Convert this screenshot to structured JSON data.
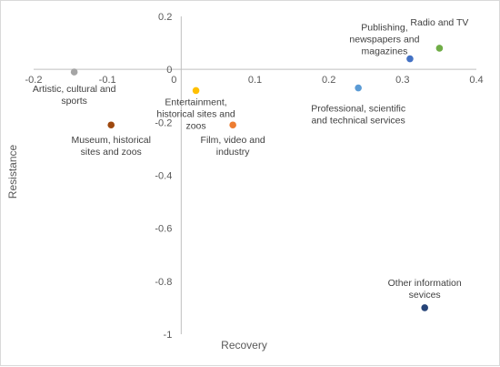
{
  "chart_data": {
    "type": "scatter",
    "title": "",
    "xlabel": "Recovery",
    "ylabel": "Resistance",
    "xlim": [
      -0.2,
      0.4
    ],
    "ylim": [
      -1,
      0.2
    ],
    "x_ticks": [
      "-0.2",
      "-0.1",
      "0",
      "0.1",
      "0.2",
      "0.3",
      "0.4"
    ],
    "y_ticks": [
      "0.2",
      "0",
      "-0.2",
      "-0.4",
      "-0.6",
      "-0.8",
      "-1"
    ],
    "grid": false,
    "legend": "none",
    "points": [
      {
        "label": "Artistic, cultural and sports",
        "lines": [
          "Artistic, cultural and",
          "sports"
        ],
        "x": -0.145,
        "y": -0.01,
        "color": "#a5a5a5"
      },
      {
        "label": "Museum, historical sites and zoos",
        "lines": [
          "Museum, historical",
          "sites and zoos"
        ],
        "x": -0.095,
        "y": -0.21,
        "color": "#9e480e"
      },
      {
        "label": "Entertainment, historical sites and zoos",
        "lines": [
          "Entertainment,",
          "historical sites and",
          "zoos"
        ],
        "x": 0.02,
        "y": -0.08,
        "color": "#ffc000"
      },
      {
        "label": "Film, video and industry",
        "lines": [
          "Film, video and",
          "industry"
        ],
        "x": 0.07,
        "y": -0.21,
        "color": "#ed7d31"
      },
      {
        "label": "Professional, scientific and technical services",
        "lines": [
          "Professional, scientific",
          "and technical services"
        ],
        "x": 0.24,
        "y": -0.07,
        "color": "#5b9bd5"
      },
      {
        "label": "Publishing, newspapers and magazines",
        "lines": [
          "Publishing,",
          "newspapers and",
          "magazines"
        ],
        "x": 0.31,
        "y": 0.04,
        "color": "#4472c4"
      },
      {
        "label": "Radio and TV",
        "lines": [
          "Radio and TV"
        ],
        "x": 0.35,
        "y": 0.08,
        "color": "#70ad47"
      },
      {
        "label": "Other information sevices",
        "lines": [
          "Other information",
          "sevices"
        ],
        "x": 0.33,
        "y": -0.9,
        "color": "#264478"
      }
    ]
  }
}
